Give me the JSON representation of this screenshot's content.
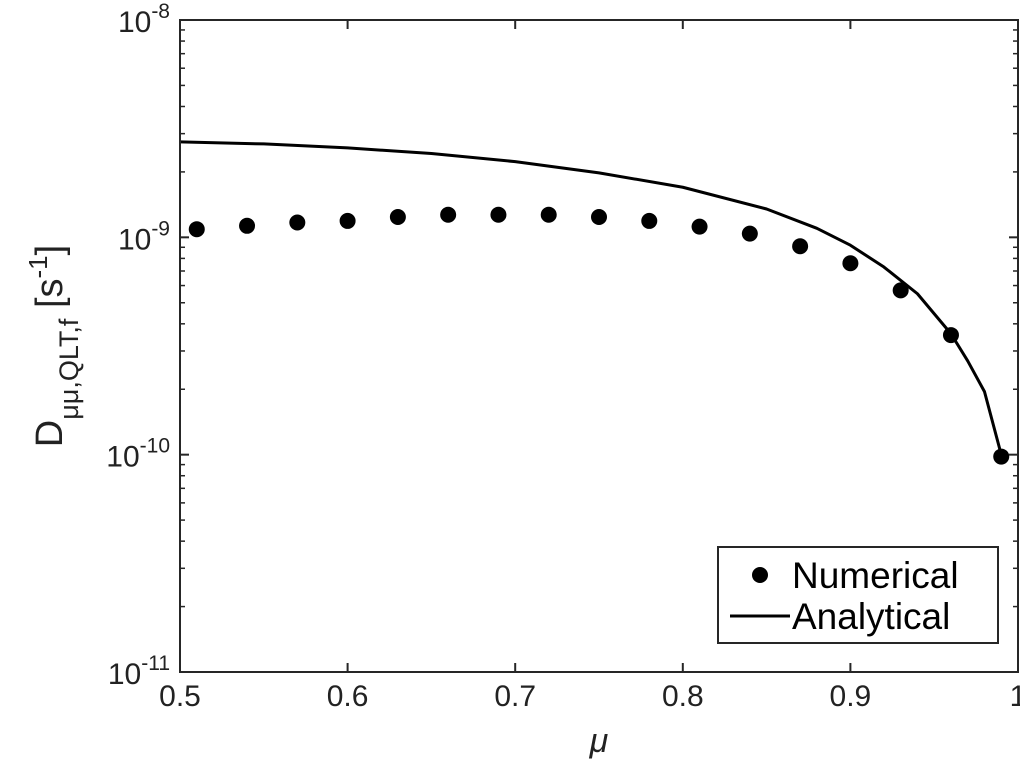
{
  "chart_data": {
    "type": "scatter",
    "title": "",
    "xlabel": "μ",
    "ylabel": {
      "base": "D",
      "subscript": "μμ,QLT,f",
      "unit_open": " [s",
      "unit_exp": "-1",
      "unit_close": "]"
    },
    "x_scale": "linear",
    "y_scale": "log",
    "xlim": [
      0.5,
      1
    ],
    "ylim": [
      1e-11,
      1e-08
    ],
    "x_ticks": [
      {
        "value": 0.5,
        "label": "0.5"
      },
      {
        "value": 0.6,
        "label": "0.6"
      },
      {
        "value": 0.7,
        "label": "0.7"
      },
      {
        "value": 0.8,
        "label": "0.8"
      },
      {
        "value": 0.9,
        "label": "0.9"
      },
      {
        "value": 1,
        "label": "1"
      }
    ],
    "y_ticks": [
      {
        "value": 1e-11,
        "base": "10",
        "exp": "-11"
      },
      {
        "value": 1e-10,
        "base": "10",
        "exp": "-10"
      },
      {
        "value": 1e-09,
        "base": "10",
        "exp": "-9"
      },
      {
        "value": 1e-08,
        "base": "10",
        "exp": "-8"
      }
    ],
    "grid": false,
    "legend_position": "bottom-right",
    "series": [
      {
        "name": "Numerical",
        "style": "markers",
        "color": "#000000",
        "x": [
          0.51,
          0.54,
          0.57,
          0.6,
          0.63,
          0.66,
          0.69,
          0.72,
          0.75,
          0.78,
          0.81,
          0.84,
          0.87,
          0.9,
          0.93,
          0.96,
          0.99
        ],
        "y": [
          1.09e-09,
          1.13e-09,
          1.17e-09,
          1.19e-09,
          1.24e-09,
          1.27e-09,
          1.27e-09,
          1.27e-09,
          1.24e-09,
          1.19e-09,
          1.12e-09,
          1.04e-09,
          9.1e-10,
          7.6e-10,
          5.7e-10,
          3.55e-10,
          9.8e-11
        ]
      },
      {
        "name": "Analytical",
        "style": "line",
        "color": "#000000",
        "x": [
          0.5,
          0.55,
          0.6,
          0.65,
          0.7,
          0.75,
          0.8,
          0.85,
          0.88,
          0.9,
          0.92,
          0.94,
          0.96,
          0.97,
          0.98,
          0.99
        ],
        "y": [
          2.75e-09,
          2.69e-09,
          2.58e-09,
          2.43e-09,
          2.23e-09,
          1.98e-09,
          1.7e-09,
          1.35e-09,
          1.1e-09,
          9.2e-10,
          7.3e-10,
          5.5e-10,
          3.6e-10,
          2.7e-10,
          1.95e-10,
          1e-10
        ]
      }
    ]
  }
}
